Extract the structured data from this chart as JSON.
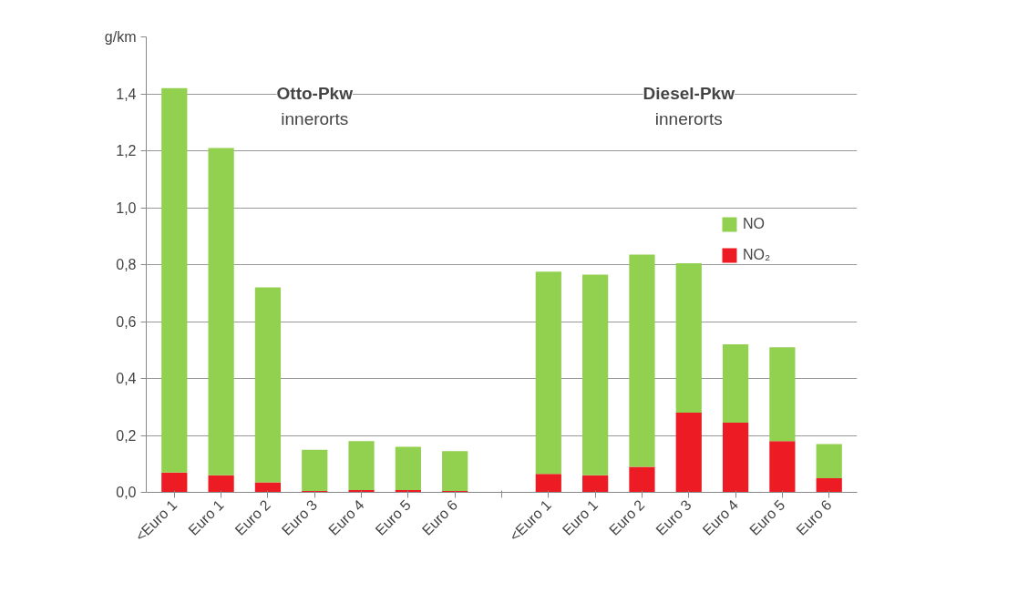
{
  "chart_data": {
    "type": "bar",
    "stacked": true,
    "ylabel": "g/km",
    "categories": [
      "<Euro 1",
      "Euro 1",
      "Euro 2",
      "Euro 3",
      "Euro 4",
      "Euro 5",
      "Euro 6",
      null,
      "<Euro 1",
      "Euro 1",
      "Euro 2",
      "Euro 3",
      "Euro 4",
      "Euro 5",
      "Euro 6"
    ],
    "series": [
      {
        "name": "NO₂",
        "color": "#ed1c24",
        "values": [
          0.07,
          0.06,
          0.035,
          0.005,
          0.008,
          0.008,
          0.005,
          null,
          0.065,
          0.06,
          0.09,
          0.28,
          0.245,
          0.18,
          0.05
        ]
      },
      {
        "name": "NO",
        "color": "#92d050",
        "values": [
          1.35,
          1.15,
          0.685,
          0.145,
          0.172,
          0.152,
          0.14,
          null,
          0.71,
          0.705,
          0.745,
          0.525,
          0.275,
          0.33,
          0.12
        ]
      }
    ],
    "ylim": [
      0,
      1.6
    ],
    "yticks": [
      {
        "value": 0,
        "label": "0,0"
      },
      {
        "value": 0.2,
        "label": "0,2"
      },
      {
        "value": 0.4,
        "label": "0,4"
      },
      {
        "value": 0.6,
        "label": "0,6"
      },
      {
        "value": 0.8,
        "label": "0,8"
      },
      {
        "value": 1.0,
        "label": "1,0"
      },
      {
        "value": 1.2,
        "label": "1,2"
      },
      {
        "value": 1.4,
        "label": "1,4"
      },
      {
        "value": 1.6,
        "label": null
      }
    ],
    "grid": "y",
    "legend": "right",
    "annotations": [
      "Otto-Pkw",
      "innerorts",
      "Diesel-Pkw",
      "innerorts"
    ]
  }
}
